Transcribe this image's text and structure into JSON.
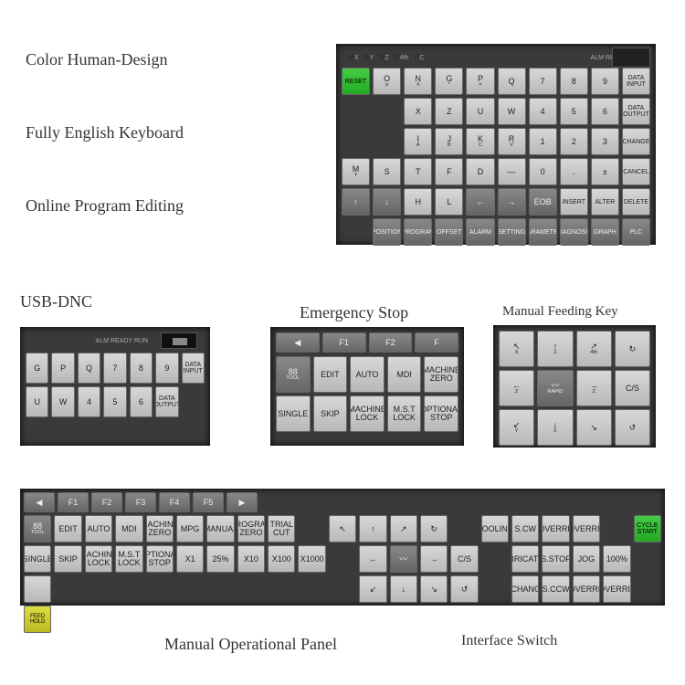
{
  "labels": {
    "color_human": "Color Human-Design",
    "english_kb": "Fully English Keyboard",
    "online_edit": "Online Program Editing",
    "usb_dnc": "USB-DNC",
    "estop": "Emergency Stop",
    "feeding": "Manual Feeding Key",
    "mop": "Manual Operational Panel",
    "iface": "Interface Switch"
  },
  "colors": {
    "panel_bg": "#3a3a3a",
    "key_light": "#d0d0d0",
    "key_dark": "#777777",
    "reset_green": "#33cc33",
    "cycle_green": "#33cc33",
    "feedhold_yellow": "#cccc22"
  },
  "main_keyboard": {
    "status": {
      "axes": [
        "X",
        "Y",
        "Z",
        "4th",
        "C"
      ],
      "indicators": [
        "ALM",
        "READY",
        "RUN"
      ]
    },
    "rows": [
      [
        {
          "t": "RESET",
          "cls": "green"
        },
        {
          "t": "O",
          "sub": "α"
        },
        {
          "t": "N",
          "sub": "#"
        },
        {
          "t": "G",
          "sub": "*"
        },
        {
          "t": "P",
          "sub": "="
        },
        {
          "t": "Q",
          "sub": ""
        },
        {
          "t": "7"
        },
        {
          "t": "8"
        },
        {
          "t": "9"
        },
        {
          "t": "DATA INPUT",
          "cls": "wide"
        }
      ],
      [
        {
          "t": "X",
          "sub": ""
        },
        {
          "t": "Z",
          "sub": ""
        },
        {
          "t": "U",
          "sub": ""
        },
        {
          "t": "W",
          "sub": ""
        },
        {
          "t": "4"
        },
        {
          "t": "5"
        },
        {
          "t": "6"
        },
        {
          "t": "DATA OUTPUT",
          "cls": "wide"
        }
      ],
      [
        {
          "t": "I",
          "sub": "A"
        },
        {
          "t": "J",
          "sub": "B"
        },
        {
          "t": "K",
          "sub": "C"
        },
        {
          "t": "R",
          "sub": "V"
        },
        {
          "t": "1"
        },
        {
          "t": "2"
        },
        {
          "t": "3"
        },
        {
          "t": "CHANGE",
          "cls": "wide"
        }
      ],
      [
        {
          "t": "M",
          "sub": "Y"
        },
        {
          "t": "S",
          "sub": ""
        },
        {
          "t": "T",
          "sub": ""
        },
        {
          "t": "F",
          "sub": ""
        },
        {
          "t": "D",
          "sub": ""
        },
        {
          "t": "—"
        },
        {
          "t": "0"
        },
        {
          "t": "."
        },
        {
          "t": "±"
        },
        {
          "t": "CANCEL",
          "cls": "wide"
        }
      ],
      [
        {
          "t": "↑",
          "cls": "dark"
        },
        {
          "t": "↓",
          "cls": "dark"
        },
        {
          "t": "H",
          "sub": ""
        },
        {
          "t": "L",
          "sub": ""
        },
        {
          "t": "←",
          "cls": "dark"
        },
        {
          "t": "→",
          "cls": "dark"
        },
        {
          "t": "EOB",
          "cls": "dark"
        },
        {
          "t": "INSERT",
          "cls": "wide"
        },
        {
          "t": "ALTER",
          "cls": "wide"
        },
        {
          "t": "DELETE",
          "cls": "wide"
        }
      ],
      [
        {
          "t": "POSITION",
          "cls": "dark wide"
        },
        {
          "t": "PROGRAM",
          "cls": "dark wide"
        },
        {
          "t": "OFFSET",
          "cls": "dark wide"
        },
        {
          "t": "ALARM",
          "cls": "dark wide"
        },
        {
          "t": "SETTING",
          "cls": "dark wide"
        },
        {
          "t": "PARAMETER",
          "cls": "dark wide"
        },
        {
          "t": "DIAGNOSIS",
          "cls": "dark wide"
        },
        {
          "t": "GRAPH",
          "cls": "dark wide"
        },
        {
          "t": "PLC",
          "cls": "dark wide"
        }
      ]
    ]
  },
  "usb_keyboard": {
    "indicators": [
      "ALM",
      "READY",
      "RUN"
    ],
    "rows": [
      [
        {
          "t": "G"
        },
        {
          "t": "P"
        },
        {
          "t": "Q"
        },
        {
          "t": "7"
        },
        {
          "t": "8"
        },
        {
          "t": "9"
        },
        {
          "t": "DATA INPUT",
          "cls": "wide"
        }
      ],
      [
        {
          "t": "U"
        },
        {
          "t": "W"
        },
        {
          "t": "4"
        },
        {
          "t": "5"
        },
        {
          "t": "6"
        },
        {
          "t": "DATA OUTPUT",
          "cls": "wide"
        }
      ]
    ]
  },
  "estop_panel": {
    "top": [
      {
        "t": "◀",
        "cls": "dark"
      },
      {
        "t": "F1",
        "cls": "dark"
      },
      {
        "t": "F2",
        "cls": "dark"
      },
      {
        "t": "F",
        "cls": "dark"
      }
    ],
    "rows": [
      [
        {
          "t": "88",
          "sub": "TOOL",
          "cls": "dark"
        },
        {
          "t": "EDIT",
          "icon": "✎"
        },
        {
          "t": "AUTO",
          "icon": "▣"
        },
        {
          "t": "MDI",
          "icon": "▤"
        },
        {
          "t": "MACHINE\nZERO",
          "icon": "⊙"
        }
      ],
      [
        {
          "t": "SINGLE",
          "icon": "▸"
        },
        {
          "t": "SKIP",
          "icon": "⊘"
        },
        {
          "t": "MACHINE\nLOCK",
          "icon": "⊗"
        },
        {
          "t": "M.S.T\nLOCK",
          "icon": "MST"
        },
        {
          "t": "OPTIONAL\nSTOP",
          "icon": "⊙"
        }
      ]
    ]
  },
  "feeding_panel": {
    "rows": [
      [
        {
          "t": "↖",
          "sub": "X"
        },
        {
          "t": "↑",
          "sub": "Z"
        },
        {
          "t": "↗",
          "sub": "4th"
        },
        {
          "t": "↻"
        }
      ],
      [
        {
          "t": "←",
          "sub": "Z"
        },
        {
          "t": "〰",
          "sub": "RAPID",
          "cls": "dark"
        },
        {
          "t": "→",
          "sub": "Z"
        },
        {
          "t": "C/S"
        }
      ],
      [
        {
          "t": "↙",
          "sub": "Y"
        },
        {
          "t": "↓",
          "sub": "X"
        },
        {
          "t": "↘"
        },
        {
          "t": "↺"
        }
      ]
    ]
  },
  "mop_panel": {
    "top": [
      {
        "t": "◀",
        "cls": "dark"
      },
      {
        "t": "F1",
        "cls": "dark"
      },
      {
        "t": "F2",
        "cls": "dark"
      },
      {
        "t": "F3",
        "cls": "dark"
      },
      {
        "t": "F4",
        "cls": "dark"
      },
      {
        "t": "F5",
        "cls": "dark"
      },
      {
        "t": "▶",
        "cls": "dark"
      }
    ],
    "row1": [
      {
        "t": "88",
        "sub": "TOOL",
        "cls": "dark"
      },
      {
        "t": "EDIT"
      },
      {
        "t": "AUTO"
      },
      {
        "t": "MDI"
      },
      {
        "t": "MACHINE\nZERO"
      },
      {
        "t": "MPG"
      },
      {
        "t": "MANUAL"
      },
      {
        "t": "PROGRAM\nZERO"
      },
      {
        "t": "TRIAL\nCUT"
      },
      {
        "sp": 1
      },
      {
        "t": "↖"
      },
      {
        "t": "↑"
      },
      {
        "t": "↗"
      },
      {
        "t": "↻"
      },
      {
        "sp": 1
      },
      {
        "t": "COOLING"
      },
      {
        "t": "S.CW"
      },
      {
        "t": "S.OVERRIDE"
      },
      {
        "t": "F.OVERRIDE"
      },
      {
        "sp": 1
      },
      {
        "t": "CYCLE\nSTART",
        "cls": "green"
      }
    ],
    "row2": [
      {
        "t": "SINGLE"
      },
      {
        "t": "SKIP"
      },
      {
        "t": "MACHINE\nLOCK"
      },
      {
        "t": "M.S.T\nLOCK"
      },
      {
        "t": "OPTIONAL\nSTOP"
      },
      {
        "t": "X1"
      },
      {
        "t": "25%"
      },
      {
        "t": "X10"
      },
      {
        "t": "X100"
      },
      {
        "t": "X1000"
      },
      {
        "sp": 1
      },
      {
        "t": "←"
      },
      {
        "t": "〰",
        "cls": "dark"
      },
      {
        "t": "→"
      },
      {
        "t": "C/S"
      },
      {
        "sp": 1
      },
      {
        "t": "LUBRICATING"
      },
      {
        "t": "S.STOP"
      },
      {
        "t": "JOG"
      },
      {
        "t": "100%"
      },
      {
        "sp": 1
      },
      {
        "t": ""
      }
    ],
    "row3": [
      {
        "sp": 10
      },
      {
        "t": "↙"
      },
      {
        "t": "↓"
      },
      {
        "t": "↘"
      },
      {
        "t": "↺"
      },
      {
        "sp": 1
      },
      {
        "t": "T.CHANGE"
      },
      {
        "t": "S.CCW"
      },
      {
        "t": "S.OVERRIDE"
      },
      {
        "t": "F.OVERRIDE"
      },
      {
        "sp": 1
      },
      {
        "t": "FEED\nHOLD",
        "cls": "yellow"
      }
    ]
  }
}
